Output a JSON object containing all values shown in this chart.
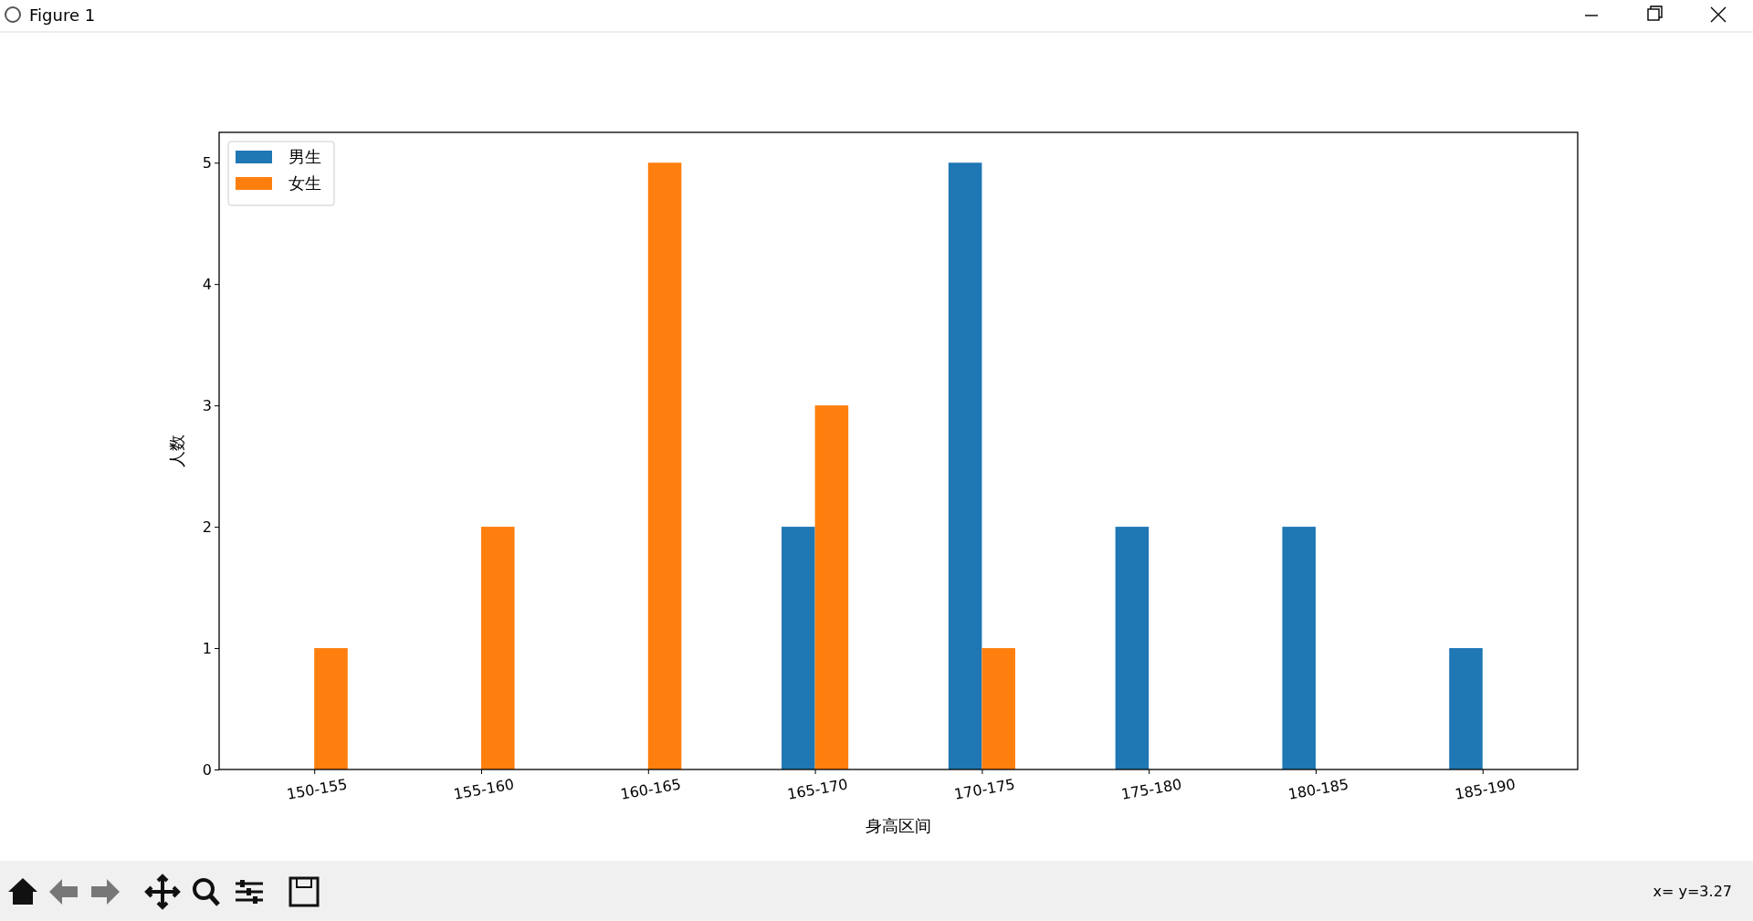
{
  "chart_data": {
    "type": "bar",
    "xlabel": "身高区间",
    "ylabel": "人数",
    "categories": [
      "150-155",
      "155-160",
      "160-165",
      "165-170",
      "170-175",
      "175-180",
      "180-185",
      "185-190"
    ],
    "series": [
      {
        "name": "男生",
        "color": "#1f77b4",
        "values": [
          0,
          0,
          0,
          2,
          5,
          2,
          2,
          1
        ]
      },
      {
        "name": "女生",
        "color": "#ff7f0e",
        "values": [
          1,
          2,
          5,
          3,
          1,
          0,
          0,
          0
        ]
      }
    ],
    "ylim": [
      0,
      5.25
    ],
    "yticks": [
      0,
      1,
      2,
      3,
      4,
      5
    ],
    "legend": "top left",
    "grid": false,
    "annotations": [
      "Figure 1",
      "x= y=3.27"
    ]
  }
}
